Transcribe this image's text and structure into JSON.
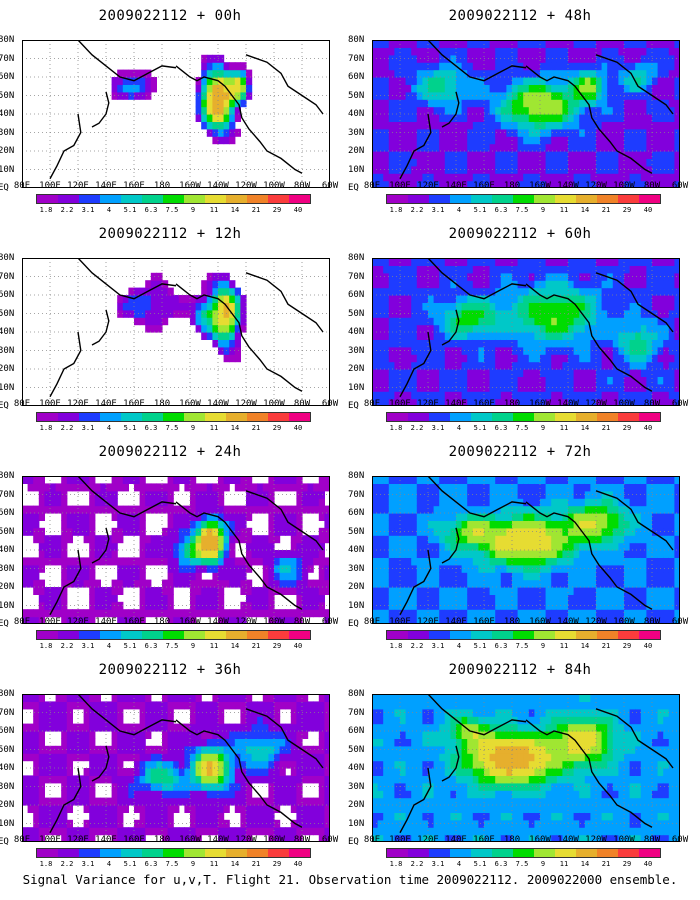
{
  "panels": [
    {
      "title": "2009022112 + 00h"
    },
    {
      "title": "2009022112 + 48h"
    },
    {
      "title": "2009022112 + 12h"
    },
    {
      "title": "2009022112 + 60h"
    },
    {
      "title": "2009022112 + 24h"
    },
    {
      "title": "2009022112 + 72h"
    },
    {
      "title": "2009022112 + 36h"
    },
    {
      "title": "2009022112 + 84h"
    }
  ],
  "lat_labels": [
    "80N",
    "70N",
    "60N",
    "50N",
    "40N",
    "30N",
    "20N",
    "10N",
    "EQ"
  ],
  "lon_labels": [
    "80E",
    "100E",
    "120E",
    "140E",
    "160E",
    "180",
    "160W",
    "140W",
    "120W",
    "100W",
    "80W",
    "60W"
  ],
  "colorbar": {
    "levels": [
      "1.8",
      "2.2",
      "3.1",
      "4",
      "5.1",
      "6.3",
      "7.5",
      "9",
      "11",
      "14",
      "21",
      "29",
      "40"
    ],
    "colors": [
      "#a000c8",
      "#8200dc",
      "#1e3cff",
      "#00a0ff",
      "#00c8c8",
      "#00d28c",
      "#00dc00",
      "#a0e632",
      "#e6dc32",
      "#e6af2d",
      "#f08228",
      "#fa3c3c",
      "#f00082"
    ]
  },
  "caption": "Signal Variance for u,v,T. Flight 21. Observation time 2009022112. 2009022000 ensemble."
}
